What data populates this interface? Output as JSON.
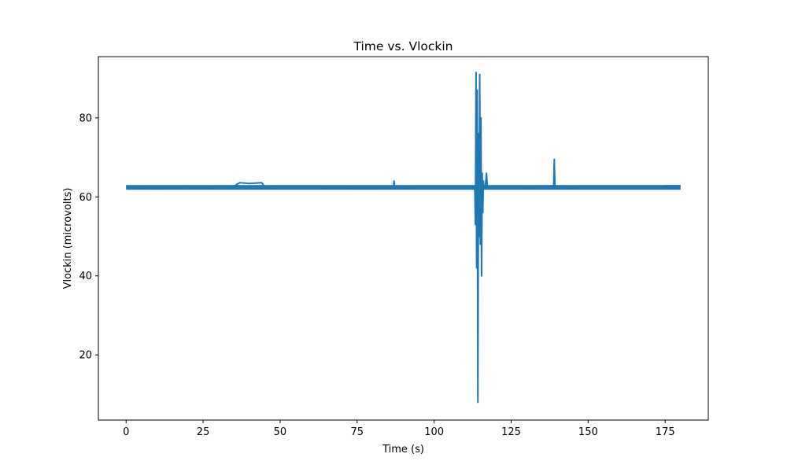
{
  "chart_data": {
    "type": "line",
    "title": "Time vs. Vlockin",
    "xlabel": "Time (s)",
    "ylabel": "Vlockin (microvolts)",
    "xlim": [
      -9,
      189
    ],
    "ylim": [
      3.5,
      95.5
    ],
    "xticks": [
      0,
      25,
      50,
      75,
      100,
      125,
      150,
      175
    ],
    "yticks": [
      20,
      40,
      60,
      80
    ],
    "grid": false,
    "legend": "none",
    "series": [
      {
        "color": "#1f77b4",
        "x": [
          0,
          5,
          10,
          15,
          20,
          25,
          30,
          35,
          36,
          37,
          40,
          44,
          45,
          46,
          50,
          60,
          70,
          80,
          86.8,
          87,
          87.2,
          90,
          95,
          100,
          105,
          110,
          113.2,
          113.4,
          113.6,
          113.8,
          114.0,
          114.2,
          114.4,
          114.6,
          114.8,
          115.0,
          115.2,
          115.4,
          115.6,
          115.8,
          116.0,
          116.2,
          116.4,
          116.6,
          117.0,
          117.3,
          117.6,
          120,
          125,
          130,
          135,
          138.8,
          139.0,
          139.2,
          139.4,
          145,
          150,
          155,
          160,
          165,
          170,
          175,
          180
        ],
        "y": [
          62.5,
          62.4,
          62.2,
          62.4,
          62.5,
          62.3,
          62.5,
          62.6,
          63.2,
          63.6,
          63.4,
          63.6,
          62.6,
          62.3,
          62.6,
          62.5,
          62.3,
          62.2,
          62.5,
          64.0,
          62.6,
          62.3,
          62.5,
          62.6,
          62.5,
          62.5,
          62.5,
          53,
          91.5,
          42,
          87,
          8,
          76,
          50,
          91,
          48,
          80,
          40,
          66,
          56,
          64,
          62,
          62.6,
          62.4,
          66,
          62.5,
          62.4,
          62.5,
          62.7,
          62.4,
          62.5,
          62.6,
          69.5,
          63,
          62.5,
          62.4,
          62.7,
          62.5,
          62.6,
          62.7,
          62.6,
          62.8,
          62.8
        ]
      }
    ]
  }
}
